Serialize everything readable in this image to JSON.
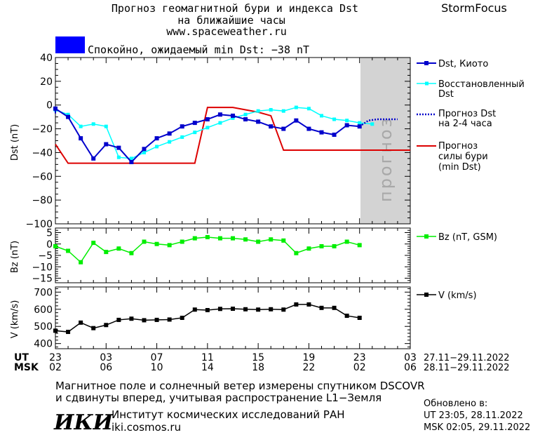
{
  "header": {
    "title_line1": "Прогноз геомагнитной бури и индекса Dst",
    "title_line2": "на ближайшие часы",
    "url": "www.spaceweather.ru",
    "brand": "StormFocus"
  },
  "status": {
    "label": "Спокойно, ожидаемый min Dst: −38 nT",
    "color": "#0000ff"
  },
  "forecast_band_label": "прогноз",
  "legend": {
    "dst_kyoto": "Dst, Киото",
    "restored_line1": "Восстановленный",
    "restored_line2": "Dst",
    "forecast_line1": "Прогноз Dst",
    "forecast_line2": "на 2-4 часа",
    "storm_line1": "Прогноз",
    "storm_line2": "силы бури",
    "storm_line3": "(min Dst)",
    "bz": "Bz (nT, GSM)",
    "v": "V (km/s)"
  },
  "axes": {
    "dst_ylabel": "Dst (nT)",
    "bz_ylabel": "Bz (nT)",
    "v_ylabel": "V (km/s)",
    "dst_ticks": [
      "40",
      "20",
      "0",
      "−20",
      "−40",
      "−60",
      "−80",
      "−100"
    ],
    "bz_ticks": [
      "5",
      "0",
      "−5",
      "−10",
      "−15"
    ],
    "v_ticks": [
      "700",
      "600",
      "500",
      "400"
    ],
    "ut_label": "UT",
    "msk_label": "MSK",
    "ut_ticks": [
      "23",
      "03",
      "07",
      "11",
      "15",
      "19",
      "23",
      "03"
    ],
    "msk_ticks": [
      "02",
      "06",
      "10",
      "14",
      "18",
      "22",
      "02",
      "06"
    ],
    "ut_range": "27.11−29.11.2022",
    "msk_range": "28.11−29.11.2022"
  },
  "footer": {
    "line1": "Магнитное поле и солнечный ветер измерены спутником DSCOVR",
    "line2": "и сдвинуты вперед, учитывая распространение L1−Земля",
    "logo": "ИКИ",
    "institute": "Институт космических исследований РАН",
    "site": "iki.cosmos.ru",
    "updated_title": "Обновлено в:",
    "updated_ut": "UT   23:05, 28.11.2022",
    "updated_msk": "MSK 02:05, 29.11.2022"
  },
  "colors": {
    "dst": "#0000cc",
    "restored": "#00ffff",
    "forecast": "#0000cc",
    "storm": "#dd0000",
    "bz": "#00ee00",
    "v": "#000000",
    "band": "#d3d3d3"
  },
  "chart_data": [
    {
      "type": "line",
      "panel": "dst",
      "x_unit": "hours from 23 UT 27.11.2022",
      "xlim": [
        0,
        28
      ],
      "ylim": [
        -100,
        40
      ],
      "forecast_band": [
        24,
        28
      ],
      "series": [
        {
          "name": "Dst, Киото",
          "x": [
            -1,
            0,
            1,
            2,
            3,
            4,
            5,
            6,
            7,
            8,
            9,
            10,
            11,
            12,
            13,
            14,
            15,
            16,
            17,
            18,
            19,
            20,
            21,
            22,
            23,
            24
          ],
          "y": [
            -7,
            -3,
            -10,
            -28,
            -45,
            -33,
            -36,
            -48,
            -37,
            -28,
            -24,
            -18,
            -15,
            -12,
            -8,
            -9,
            -12,
            -14,
            -18,
            -20,
            -13,
            -20,
            -23,
            -25,
            -17,
            -18
          ]
        },
        {
          "name": "Восстановленный Dst",
          "x": [
            -1,
            0,
            1,
            2,
            3,
            4,
            5,
            6,
            7,
            8,
            9,
            10,
            11,
            12,
            13,
            14,
            15,
            16,
            17,
            18,
            19,
            20,
            21,
            22,
            23,
            24,
            25
          ],
          "y": [
            -5,
            -4,
            -8,
            -18,
            -16,
            -18,
            -44,
            -45,
            -40,
            -35,
            -31,
            -27,
            -23,
            -19,
            -15,
            -11,
            -8,
            -5,
            -4,
            -5,
            -2,
            -3,
            -9,
            -12,
            -13,
            -15,
            -16
          ]
        },
        {
          "name": "Прогноз Dst на 2-4 часа",
          "x": [
            24,
            24.7,
            25.4,
            26.1,
            27
          ],
          "y": [
            -18,
            -13,
            -12,
            -12,
            -12
          ]
        },
        {
          "name": "Прогноз силы бури (min Dst)",
          "x": [
            -1,
            0,
            1,
            2,
            3,
            4,
            5,
            6,
            7,
            8,
            9,
            10,
            11,
            12,
            13,
            14,
            15,
            16,
            17,
            18,
            19,
            20,
            21,
            22,
            23,
            24,
            25,
            26,
            27,
            28
          ],
          "y": [
            -33,
            -33,
            -49,
            -49,
            -49,
            -49,
            -49,
            -49,
            -49,
            -49,
            -49,
            -49,
            -49,
            -2,
            -2,
            -2,
            -4,
            -6,
            -9,
            -38,
            -38,
            -38,
            -38,
            -38,
            -38,
            -38,
            -38,
            -38,
            -38,
            -38
          ],
          "step": true
        }
      ]
    },
    {
      "type": "line",
      "panel": "bz",
      "xlim": [
        0,
        28
      ],
      "ylim": [
        -17,
        7
      ],
      "series": [
        {
          "name": "Bz (nT, GSM)",
          "x": [
            0,
            1,
            2,
            3,
            4,
            5,
            6,
            7,
            8,
            9,
            10,
            11,
            12,
            13,
            14,
            15,
            16,
            17,
            18,
            19,
            20,
            21,
            22,
            23,
            24
          ],
          "y": [
            -1,
            -3,
            -8,
            0.5,
            -3.5,
            -2,
            -4,
            1,
            0,
            -0.5,
            1,
            2.5,
            3,
            2.5,
            2.5,
            2,
            1,
            2,
            1.5,
            -4,
            -2,
            -1,
            -1,
            1,
            -0.5
          ]
        }
      ]
    },
    {
      "type": "line",
      "panel": "v",
      "xlim": [
        0,
        28
      ],
      "ylim": [
        370,
        730
      ],
      "series": [
        {
          "name": "V (km/s)",
          "x": [
            0,
            1,
            2,
            3,
            4,
            5,
            6,
            7,
            8,
            9,
            10,
            11,
            12,
            13,
            14,
            15,
            16,
            17,
            18,
            19,
            20,
            21,
            22,
            23,
            24
          ],
          "y": [
            475,
            468,
            522,
            490,
            508,
            538,
            545,
            536,
            538,
            540,
            550,
            598,
            595,
            602,
            603,
            600,
            598,
            600,
            598,
            628,
            628,
            608,
            608,
            562,
            550
          ]
        }
      ]
    }
  ]
}
